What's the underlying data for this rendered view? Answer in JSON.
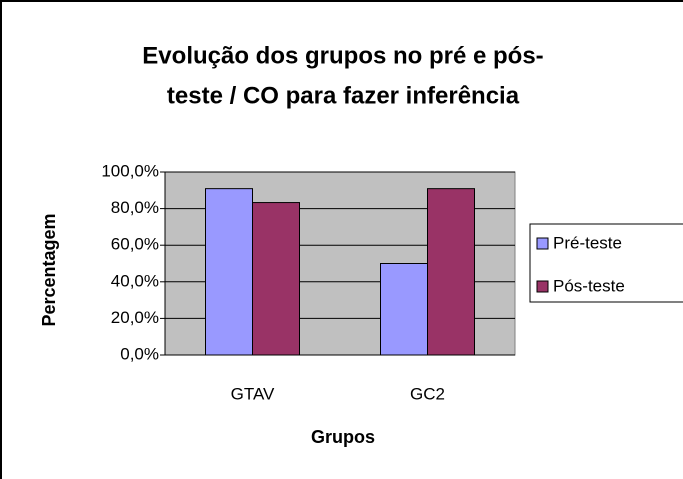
{
  "chart_data": {
    "type": "bar",
    "title": [
      "Evolução dos grupos no pré e pós-",
      "teste / CO para fazer inferência"
    ],
    "x_label": "Grupos",
    "y_label": "Percentagem",
    "categories": [
      "GTAV",
      "GC2"
    ],
    "series": [
      {
        "name": "Pré-teste",
        "color": "#9999ff",
        "values": [
          90.9,
          50
        ]
      },
      {
        "name": "Pós-teste",
        "color": "#993366",
        "values": [
          83.3,
          90.9
        ]
      }
    ],
    "ylim": [
      0,
      100
    ],
    "yticks": [
      {
        "value": 0,
        "label": "0,0%"
      },
      {
        "value": 20,
        "label": "20,0%"
      },
      {
        "value": 40,
        "label": "40,0%"
      },
      {
        "value": 60,
        "label": "60,0%"
      },
      {
        "value": 80,
        "label": "80,0%"
      },
      {
        "value": 100,
        "label": "100,0%"
      }
    ],
    "grid": true,
    "legend": "right",
    "plot_background": "#c0c0c0"
  }
}
